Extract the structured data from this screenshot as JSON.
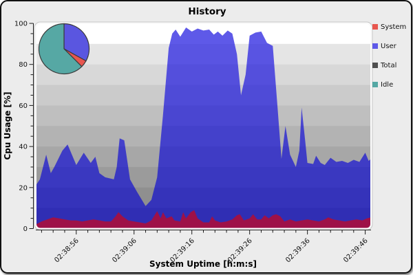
{
  "legend": {
    "items": [
      {
        "label": "System",
        "color": "#e8574f"
      },
      {
        "label": "User",
        "color": "#5e59e8"
      },
      {
        "label": "Total",
        "color": "#4f4f4f"
      },
      {
        "label": "Idle",
        "color": "#55a8a4"
      }
    ]
  },
  "chart_data": {
    "type": "area",
    "title": "History",
    "xlabel": "System Uptime [h:m:s]",
    "ylabel": "Cpu Usage [%]",
    "ylim": [
      0,
      100
    ],
    "y_ticks": [
      0,
      20,
      40,
      60,
      80,
      100
    ],
    "y_minor_step": 5,
    "x_seconds_span": 58,
    "x_tick_seconds": [
      7,
      17,
      27,
      37,
      47,
      57
    ],
    "x_tick_labels": [
      "02:38:56",
      "02:39:06",
      "02:39:16",
      "02:39:26",
      "02:39:36",
      "02:39:46"
    ],
    "x_minor_step": 2,
    "grid": "stepped-bands",
    "legend_position": "right",
    "background_bands": [
      "#ffffff",
      "#e5e5e5",
      "#d8d8d8",
      "#cbcbcb",
      "#bfbfbf",
      "#b3b3b3",
      "#a7a7a7",
      "#9b9b9b",
      "#8f8f8f",
      "#838383"
    ],
    "series": [
      {
        "name": "User",
        "stacking": "top of System (values are System+User total)",
        "color_top": "#5e59e8",
        "color_bottom": "#302eb4",
        "t": [
          0,
          0.7,
          1.8,
          2.6,
          3.2,
          4.6,
          5.5,
          7,
          8.3,
          9.5,
          10.3,
          11,
          12,
          13.5,
          14,
          14.5,
          15.3,
          16.3,
          17.5,
          19,
          20,
          21,
          22,
          23,
          23.6,
          24.2,
          25,
          26,
          27,
          28,
          29,
          30,
          30.8,
          31.5,
          32.3,
          33.2,
          34,
          34.8,
          35.5,
          36.3,
          37,
          38,
          39,
          40,
          41,
          41.8,
          42.5,
          43.2,
          44,
          45,
          45.6,
          46,
          46.6,
          47,
          48,
          48.5,
          49.3,
          50,
          51,
          52,
          53,
          54,
          55,
          56,
          57,
          57.6,
          58
        ],
        "values": [
          21,
          24,
          36,
          27,
          30,
          38,
          41,
          31,
          37,
          32,
          35,
          27,
          25,
          24,
          30,
          44,
          43,
          24,
          18,
          11,
          14,
          25,
          55,
          88,
          95,
          97,
          93.5,
          98,
          96,
          97.5,
          96.5,
          97,
          94.5,
          96,
          94,
          96.5,
          95,
          85,
          65,
          75,
          94,
          95.5,
          96,
          90.5,
          89,
          60,
          34,
          50,
          36,
          30,
          38,
          59,
          43,
          32,
          31.5,
          35.5,
          32,
          31,
          34.5,
          32.5,
          33,
          32,
          33.5,
          32.5,
          37,
          33,
          34
        ]
      },
      {
        "name": "System",
        "color_top": "#e8574f",
        "color_bottom": "#9e1148",
        "t": [
          0,
          1,
          2,
          3,
          4,
          5,
          6,
          7,
          8,
          9,
          10,
          11,
          12,
          13,
          13.8,
          14.3,
          15,
          16,
          17,
          18,
          19,
          20,
          21,
          21.6,
          22,
          22.6,
          23.5,
          24,
          25,
          25.5,
          26,
          26.8,
          27.4,
          28,
          29,
          30,
          30.5,
          31,
          32,
          33,
          34,
          34.8,
          35.3,
          36,
          37,
          37.6,
          38.3,
          39,
          39.6,
          40.3,
          41,
          41.6,
          42.3,
          43,
          44,
          45,
          46,
          47,
          48,
          49,
          50,
          50.6,
          51.5,
          52.5,
          53.5,
          54.5,
          55.5,
          56.5,
          57.3,
          58
        ],
        "values": [
          2,
          3.5,
          4.5,
          5.5,
          5,
          4.5,
          4,
          4,
          3.5,
          4,
          4.5,
          4,
          3.5,
          3.5,
          6,
          8,
          6,
          4,
          3.5,
          3,
          2.5,
          4,
          8.5,
          5,
          8,
          5,
          6,
          4,
          3.5,
          8,
          5,
          8,
          9,
          5,
          3,
          3,
          6,
          4,
          3,
          3.5,
          4.5,
          6.5,
          7,
          4,
          5,
          7,
          4.5,
          4.5,
          6.5,
          5,
          6.5,
          7,
          6,
          3.5,
          4.5,
          3.5,
          4,
          4.5,
          4,
          3.5,
          4.5,
          5.5,
          4.5,
          4,
          3.5,
          4,
          4.5,
          4,
          5,
          5.5
        ]
      }
    ],
    "pie_inset": {
      "position": "top-left",
      "slices": [
        {
          "label": "User",
          "value": 33,
          "color": "#5a56e0"
        },
        {
          "label": "System",
          "value": 4.5,
          "color": "#e8564f"
        },
        {
          "label": "Idle",
          "value": 62.5,
          "color": "#56a8a4"
        }
      ],
      "outline_color": "#3a3a3a"
    }
  }
}
